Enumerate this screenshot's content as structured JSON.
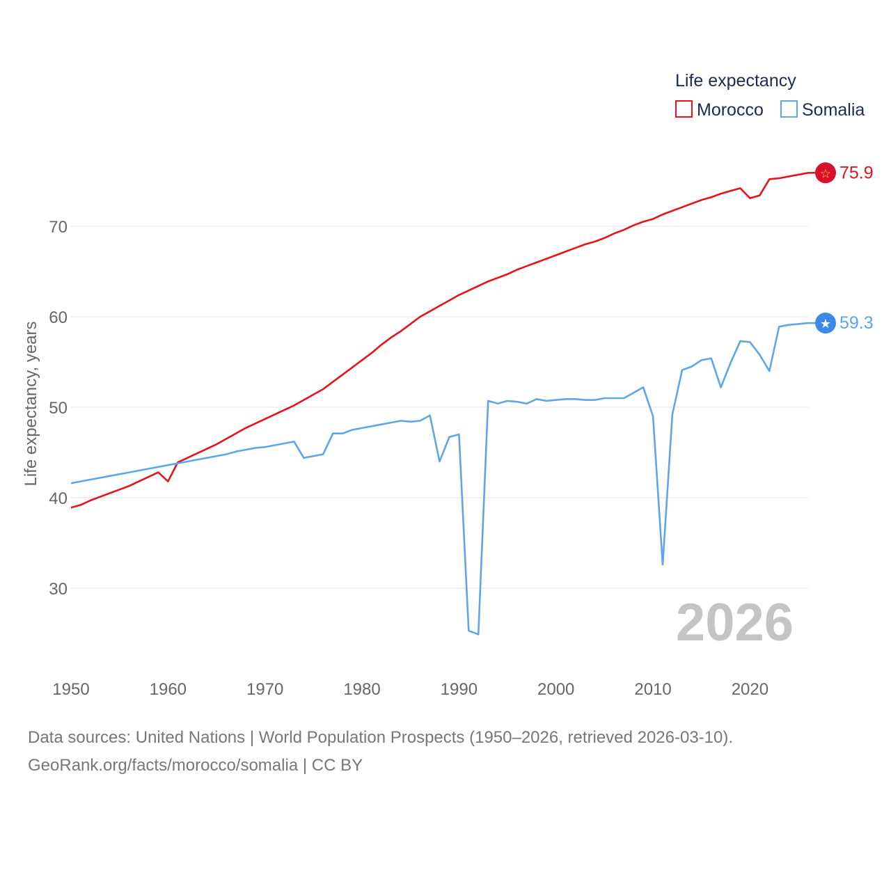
{
  "chart_data": {
    "type": "line",
    "title": "",
    "legend_title": "Life expectancy",
    "xlabel": "",
    "ylabel": "Life expectancy, years",
    "xlim": [
      1950,
      2026
    ],
    "ylim": [
      22,
      80
    ],
    "x_ticks": [
      1950,
      1960,
      1970,
      1980,
      1990,
      2000,
      2010,
      2020
    ],
    "y_ticks": [
      30,
      40,
      50,
      60,
      70
    ],
    "year_label": "2026",
    "legend_position": "top-right",
    "series": [
      {
        "name": "Morocco",
        "color": "#e8121a",
        "icon": "star-icon",
        "end_label": "75.9",
        "x": [
          1950,
          1951,
          1952,
          1953,
          1954,
          1955,
          1956,
          1957,
          1958,
          1959,
          1960,
          1961,
          1962,
          1963,
          1964,
          1965,
          1966,
          1967,
          1968,
          1969,
          1970,
          1971,
          1972,
          1973,
          1974,
          1975,
          1976,
          1977,
          1978,
          1979,
          1980,
          1981,
          1982,
          1983,
          1984,
          1985,
          1986,
          1987,
          1988,
          1989,
          1990,
          1991,
          1992,
          1993,
          1994,
          1995,
          1996,
          1997,
          1998,
          1999,
          2000,
          2001,
          2002,
          2003,
          2004,
          2005,
          2006,
          2007,
          2008,
          2009,
          2010,
          2011,
          2012,
          2013,
          2014,
          2015,
          2016,
          2017,
          2018,
          2019,
          2020,
          2021,
          2022,
          2023,
          2024,
          2025,
          2026
        ],
        "values": [
          38.9,
          39.2,
          39.7,
          40.1,
          40.5,
          40.9,
          41.3,
          41.8,
          42.3,
          42.8,
          41.8,
          43.9,
          44.4,
          44.9,
          45.4,
          45.9,
          46.5,
          47.1,
          47.7,
          48.2,
          48.7,
          49.2,
          49.7,
          50.2,
          50.8,
          51.4,
          52.0,
          52.8,
          53.6,
          54.4,
          55.2,
          56.0,
          56.9,
          57.7,
          58.4,
          59.2,
          60.0,
          60.6,
          61.2,
          61.8,
          62.4,
          62.9,
          63.4,
          63.9,
          64.3,
          64.7,
          65.2,
          65.6,
          66.0,
          66.4,
          66.8,
          67.2,
          67.6,
          68.0,
          68.3,
          68.7,
          69.2,
          69.6,
          70.1,
          70.5,
          70.8,
          71.3,
          71.7,
          72.1,
          72.5,
          72.9,
          73.2,
          73.6,
          73.9,
          74.2,
          73.1,
          73.4,
          75.2,
          75.3,
          75.5,
          75.7,
          75.9
        ]
      },
      {
        "name": "Somalia",
        "color": "#5ea6e8",
        "icon": "star-icon",
        "end_label": "59.3",
        "x": [
          1950,
          1951,
          1952,
          1953,
          1954,
          1955,
          1956,
          1957,
          1958,
          1959,
          1960,
          1961,
          1962,
          1963,
          1964,
          1965,
          1966,
          1967,
          1968,
          1969,
          1970,
          1971,
          1972,
          1973,
          1974,
          1975,
          1976,
          1977,
          1978,
          1979,
          1980,
          1981,
          1982,
          1983,
          1984,
          1985,
          1986,
          1987,
          1988,
          1989,
          1990,
          1991,
          1992,
          1993,
          1994,
          1995,
          1996,
          1997,
          1998,
          1999,
          2000,
          2001,
          2002,
          2003,
          2004,
          2005,
          2006,
          2007,
          2008,
          2009,
          2010,
          2011,
          2012,
          2013,
          2014,
          2015,
          2016,
          2017,
          2018,
          2019,
          2020,
          2021,
          2022,
          2023,
          2024,
          2025,
          2026
        ],
        "values": [
          41.6,
          41.8,
          42.0,
          42.2,
          42.4,
          42.6,
          42.8,
          43.0,
          43.2,
          43.4,
          43.6,
          43.8,
          44.0,
          44.2,
          44.4,
          44.6,
          44.8,
          45.1,
          45.3,
          45.5,
          45.6,
          45.8,
          46.0,
          46.2,
          44.4,
          44.6,
          44.8,
          47.1,
          47.1,
          47.5,
          47.7,
          47.9,
          48.1,
          48.3,
          48.5,
          48.4,
          48.5,
          49.1,
          44.0,
          46.7,
          47.0,
          25.3,
          24.9,
          50.7,
          50.4,
          50.7,
          50.6,
          50.4,
          50.9,
          50.7,
          50.8,
          50.9,
          50.9,
          50.8,
          50.8,
          51.0,
          51.0,
          51.0,
          51.6,
          52.2,
          49.0,
          32.6,
          49.2,
          54.1,
          54.5,
          55.2,
          55.4,
          52.2,
          54.9,
          57.3,
          57.2,
          55.8,
          54.0,
          58.9,
          59.1,
          59.2,
          59.3
        ]
      }
    ]
  },
  "footer": {
    "source_line": "Data sources: United Nations | World Population Prospects (1950–2026, retrieved 2026-03-10).",
    "credit_line": "GeoRank.org/facts/morocco/somalia | CC BY"
  }
}
